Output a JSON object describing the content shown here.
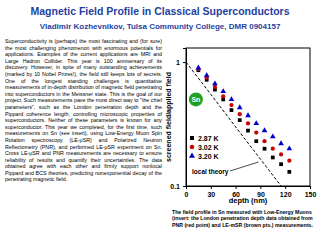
{
  "header": {
    "title": "Magnetic Field Profile in Classical Superconductors",
    "subtitle": "Vladimir Kozhevnikov, Tulsa Community College, DMR 0904157"
  },
  "body": {
    "text": "Superconductivity is (perhaps) the most fascinating and (for sure) the most challenging phenomenon with enormous potentials for applications. Examples of the current applications are MRI and Large Hadron Collider. This year is 100 anniversary of its discovery. However, in spite of many outstanding achievements (marked by 10 Nobel Prizes!), the field still keeps lots of secrets. One of the longest standing challenges is quantitative measurements of in-depth distribution of magnetic field penetrating into superconductors in the Meissner state. This is the goal of our project. Such measurements pave the most direct way to \"the chief parameters\", such as the London penetration depth and the Pippard coherence length, controlling microscopic properties of superconductors. Neither of these parameters is known for any superconductor. This year we completed, for the first time, such measurements on Sn (see insert), using Low-Energy Muon Spin Rotation spectroscopy (LE-μSR) and Polarized Neutron Reflectometry (PNR), and performed LE-μSR experiment on Sn. Cross LE-μSR and PNR measurements are necessary to ensure reliability of results and quantify their uncertainties. The data obtained agree with each other and firmly support nonlocal Pippard and BCS theories, predicting nonexponential decay of the penetrating magnetic field."
  },
  "caption": {
    "text": "The field profile in Sn measured with Low-Energy Muons (insert: the London penetration depth data obtained from PNR (red point) and LE-mSR (brown pts.) measurements."
  },
  "chart_data": {
    "type": "scatter",
    "x_label": "depth (nm)",
    "y_label": "screened field/applied field",
    "log": "y",
    "xlim": [
      0,
      150
    ],
    "ylim": [
      0.1,
      1.3
    ],
    "xticks": [
      0,
      30,
      60,
      90,
      120,
      150
    ],
    "yticks": [
      0.1,
      1
    ],
    "annotations": [
      {
        "text": "Sn",
        "x": 12,
        "y": 0.5,
        "color": "#22a022"
      }
    ],
    "legend": "lower left",
    "series": [
      {
        "name": "2.87 K",
        "color": "#000000",
        "marker": "square",
        "x": [
          15,
          25,
          35,
          45,
          55,
          65,
          75,
          85,
          95,
          105,
          115,
          125
        ],
        "values": [
          0.86,
          0.72,
          0.6,
          0.5,
          0.41,
          0.34,
          0.28,
          0.23,
          0.2,
          0.17,
          0.15,
          0.13
        ]
      },
      {
        "name": "3.02 K",
        "color": "#cc0000",
        "marker": "circle",
        "x": [
          15,
          25,
          35,
          45,
          55,
          65,
          75,
          85,
          95,
          105,
          115,
          125
        ],
        "values": [
          0.88,
          0.75,
          0.63,
          0.53,
          0.45,
          0.38,
          0.32,
          0.27,
          0.23,
          0.2,
          0.18,
          0.16
        ]
      },
      {
        "name": "3.20 K",
        "color": "#0000cc",
        "marker": "triangle",
        "x": [
          15,
          25,
          35,
          45,
          55,
          65,
          75,
          85,
          95,
          105,
          115,
          125
        ],
        "values": [
          0.9,
          0.78,
          0.67,
          0.58,
          0.5,
          0.43,
          0.37,
          0.32,
          0.28,
          0.25,
          0.22,
          0.2
        ]
      },
      {
        "name": "local theory",
        "type": "line",
        "color": "#000000",
        "line_style": "dashed",
        "x": [
          0,
          30,
          60,
          90,
          115
        ],
        "values": [
          1,
          0.55,
          0.3,
          0.165,
          0.1
        ]
      }
    ]
  }
}
